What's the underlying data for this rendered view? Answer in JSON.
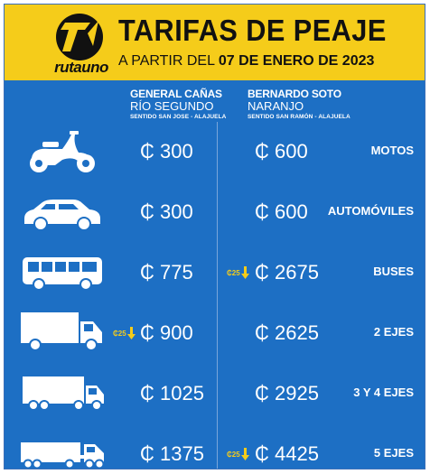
{
  "header": {
    "logo_text": "rutauno",
    "title": "TARIFAS DE PEAJE",
    "subtitle_prefix": "A PARTIR DEL",
    "subtitle_date": "07 DE ENERO DE 2023"
  },
  "columns": [
    {
      "line1": "GENERAL CAÑAS",
      "line2": "RÍO SEGUNDO",
      "line3": "SENTIDO SAN JOSE - ALAJUELA"
    },
    {
      "line1": "BERNARDO SOTO",
      "line2": "NARANJO",
      "line3": "SENTIDO SAN RAMÓN - ALAJUELA"
    }
  ],
  "rows": [
    {
      "category": "MOTOS",
      "price_a": "₵ 300",
      "price_b": "₵ 600",
      "discount_a": "",
      "discount_b": ""
    },
    {
      "category": "AUTOMÓVILES",
      "price_a": "₵ 300",
      "price_b": "₵ 600",
      "discount_a": "",
      "discount_b": ""
    },
    {
      "category": "BUSES",
      "price_a": "₵ 775",
      "price_b": "₵ 2675",
      "discount_a": "",
      "discount_b": "₵25"
    },
    {
      "category": "2 EJES",
      "price_a": "₵ 900",
      "price_b": "₵ 2625",
      "discount_a": "₵25",
      "discount_b": ""
    },
    {
      "category": "3 Y 4 EJES",
      "price_a": "₵ 1025",
      "price_b": "₵ 2925",
      "discount_a": "",
      "discount_b": ""
    },
    {
      "category": "5 EJES",
      "price_a": "₵ 1375",
      "price_b": "₵ 4425",
      "discount_a": "",
      "discount_b": "₵25"
    }
  ],
  "icons": [
    "motorcycle-icon",
    "car-icon",
    "bus-icon",
    "truck-2-axle-icon",
    "truck-3-4-axle-icon",
    "truck-5-axle-icon"
  ],
  "colors": {
    "background": "#1d6fc4",
    "header": "#f5cc1a",
    "text": "#ffffff",
    "discount": "#f5cc1a"
  }
}
